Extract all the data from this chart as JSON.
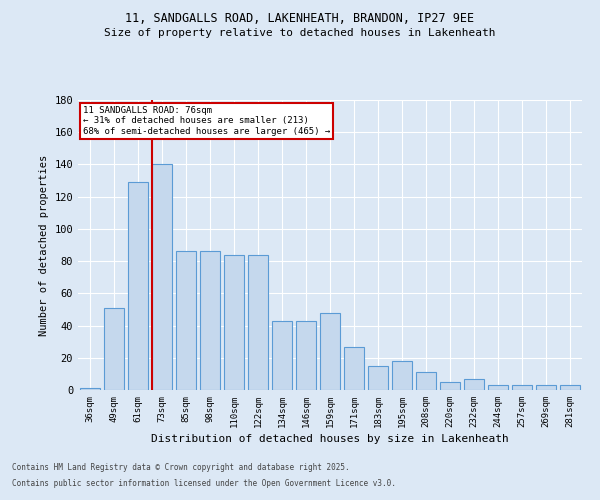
{
  "title1": "11, SANDGALLS ROAD, LAKENHEATH, BRANDON, IP27 9EE",
  "title2": "Size of property relative to detached houses in Lakenheath",
  "xlabel": "Distribution of detached houses by size in Lakenheath",
  "ylabel": "Number of detached properties",
  "categories": [
    "36sqm",
    "49sqm",
    "61sqm",
    "73sqm",
    "85sqm",
    "98sqm",
    "110sqm",
    "122sqm",
    "134sqm",
    "146sqm",
    "159sqm",
    "171sqm",
    "183sqm",
    "195sqm",
    "208sqm",
    "220sqm",
    "232sqm",
    "244sqm",
    "257sqm",
    "269sqm",
    "281sqm"
  ],
  "values": [
    1,
    51,
    129,
    140,
    86,
    86,
    84,
    84,
    43,
    43,
    48,
    27,
    15,
    18,
    11,
    5,
    7,
    3,
    3,
    3,
    3
  ],
  "bar_color": "#c5d8ed",
  "bar_edge_color": "#5b9bd5",
  "vline_index": 3,
  "annotation_title": "11 SANDGALLS ROAD: 76sqm",
  "annotation_line1": "← 31% of detached houses are smaller (213)",
  "annotation_line2": "68% of semi-detached houses are larger (465) →",
  "annotation_box_color": "#ffffff",
  "annotation_box_edge": "#cc0000",
  "vline_color": "#cc0000",
  "background_color": "#dce8f5",
  "grid_color": "#ffffff",
  "footer1": "Contains HM Land Registry data © Crown copyright and database right 2025.",
  "footer2": "Contains public sector information licensed under the Open Government Licence v3.0.",
  "ylim": [
    0,
    180
  ],
  "yticks": [
    0,
    20,
    40,
    60,
    80,
    100,
    120,
    140,
    160,
    180
  ]
}
